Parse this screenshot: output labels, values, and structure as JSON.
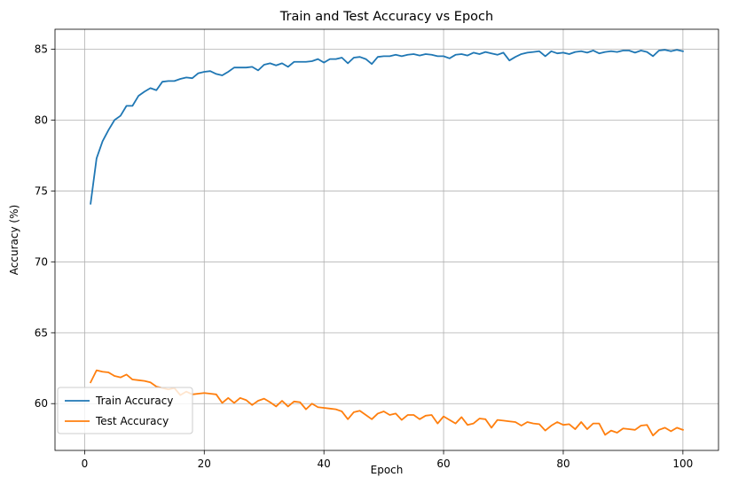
{
  "chart_data": {
    "type": "line",
    "title": "Train and Test Accuracy vs Epoch",
    "xlabel": "Epoch",
    "ylabel": "Accuracy (%)",
    "xlim": [
      -4.95,
      105.95
    ],
    "ylim": [
      56.7,
      86.4
    ],
    "xticks": [
      0,
      20,
      40,
      60,
      80,
      100
    ],
    "yticks": [
      60,
      65,
      70,
      75,
      80,
      85
    ],
    "grid": true,
    "legend": "lower-left",
    "series": [
      {
        "name": "Train Accuracy",
        "color": "#1f77b4",
        "x": [
          1,
          2,
          3,
          4,
          5,
          6,
          7,
          8,
          9,
          10,
          11,
          12,
          13,
          14,
          15,
          16,
          17,
          18,
          19,
          20,
          21,
          22,
          23,
          24,
          25,
          26,
          27,
          28,
          29,
          30,
          31,
          32,
          33,
          34,
          35,
          36,
          37,
          38,
          39,
          40,
          41,
          42,
          43,
          44,
          45,
          46,
          47,
          48,
          49,
          50,
          51,
          52,
          53,
          54,
          55,
          56,
          57,
          58,
          59,
          60,
          61,
          62,
          63,
          64,
          65,
          66,
          67,
          68,
          69,
          70,
          71,
          72,
          73,
          74,
          75,
          76,
          77,
          78,
          79,
          80,
          81,
          82,
          83,
          84,
          85,
          86,
          87,
          88,
          89,
          90,
          91,
          92,
          93,
          94,
          95,
          96,
          97,
          98,
          99,
          100
        ],
        "values": [
          74.1,
          77.3,
          78.5,
          79.3,
          80.0,
          80.3,
          81.0,
          81.0,
          81.7,
          82.0,
          82.25,
          82.1,
          82.7,
          82.75,
          82.75,
          82.9,
          83.0,
          82.95,
          83.3,
          83.4,
          83.45,
          83.25,
          83.15,
          83.4,
          83.7,
          83.7,
          83.7,
          83.75,
          83.5,
          83.9,
          84.0,
          83.85,
          84.0,
          83.75,
          84.1,
          84.1,
          84.1,
          84.15,
          84.3,
          84.05,
          84.3,
          84.3,
          84.4,
          84.0,
          84.4,
          84.45,
          84.3,
          83.95,
          84.45,
          84.5,
          84.5,
          84.6,
          84.5,
          84.6,
          84.65,
          84.55,
          84.65,
          84.6,
          84.5,
          84.5,
          84.35,
          84.6,
          84.65,
          84.55,
          84.75,
          84.65,
          84.8,
          84.7,
          84.6,
          84.75,
          84.2,
          84.45,
          84.65,
          84.75,
          84.8,
          84.85,
          84.5,
          84.85,
          84.7,
          84.75,
          84.65,
          84.8,
          84.85,
          84.75,
          84.9,
          84.7,
          84.8,
          84.85,
          84.8,
          84.9,
          84.9,
          84.75,
          84.9,
          84.8,
          84.5,
          84.9,
          84.95,
          84.85,
          84.95,
          84.85
        ]
      },
      {
        "name": "Test Accuracy",
        "color": "#ff7f0e",
        "x": [
          1,
          2,
          3,
          4,
          5,
          6,
          7,
          8,
          9,
          10,
          11,
          12,
          13,
          14,
          15,
          16,
          17,
          18,
          19,
          20,
          21,
          22,
          23,
          24,
          25,
          26,
          27,
          28,
          29,
          30,
          31,
          32,
          33,
          34,
          35,
          36,
          37,
          38,
          39,
          40,
          41,
          42,
          43,
          44,
          45,
          46,
          47,
          48,
          49,
          50,
          51,
          52,
          53,
          54,
          55,
          56,
          57,
          58,
          59,
          60,
          61,
          62,
          63,
          64,
          65,
          66,
          67,
          68,
          69,
          70,
          71,
          72,
          73,
          74,
          75,
          76,
          77,
          78,
          79,
          80,
          81,
          82,
          83,
          84,
          85,
          86,
          87,
          88,
          89,
          90,
          91,
          92,
          93,
          94,
          95,
          96,
          97,
          98,
          99,
          100
        ],
        "values": [
          61.5,
          62.35,
          62.25,
          62.2,
          61.95,
          61.85,
          62.05,
          61.7,
          61.65,
          61.6,
          61.5,
          61.2,
          61.1,
          61.0,
          61.1,
          60.6,
          60.85,
          60.65,
          60.7,
          60.75,
          60.7,
          60.65,
          60.05,
          60.4,
          60.05,
          60.4,
          60.25,
          59.9,
          60.2,
          60.35,
          60.1,
          59.8,
          60.2,
          59.8,
          60.15,
          60.1,
          59.6,
          60.0,
          59.75,
          59.7,
          59.65,
          59.6,
          59.45,
          58.9,
          59.4,
          59.5,
          59.2,
          58.9,
          59.3,
          59.45,
          59.2,
          59.3,
          58.85,
          59.2,
          59.2,
          58.9,
          59.15,
          59.2,
          58.6,
          59.1,
          58.85,
          58.6,
          59.05,
          58.5,
          58.6,
          58.95,
          58.9,
          58.3,
          58.85,
          58.8,
          58.75,
          58.7,
          58.45,
          58.7,
          58.6,
          58.55,
          58.1,
          58.45,
          58.7,
          58.5,
          58.55,
          58.2,
          58.7,
          58.2,
          58.6,
          58.6,
          57.8,
          58.1,
          57.95,
          58.25,
          58.2,
          58.15,
          58.45,
          58.5,
          57.75,
          58.15,
          58.3,
          58.05,
          58.3,
          58.15
        ]
      }
    ]
  }
}
